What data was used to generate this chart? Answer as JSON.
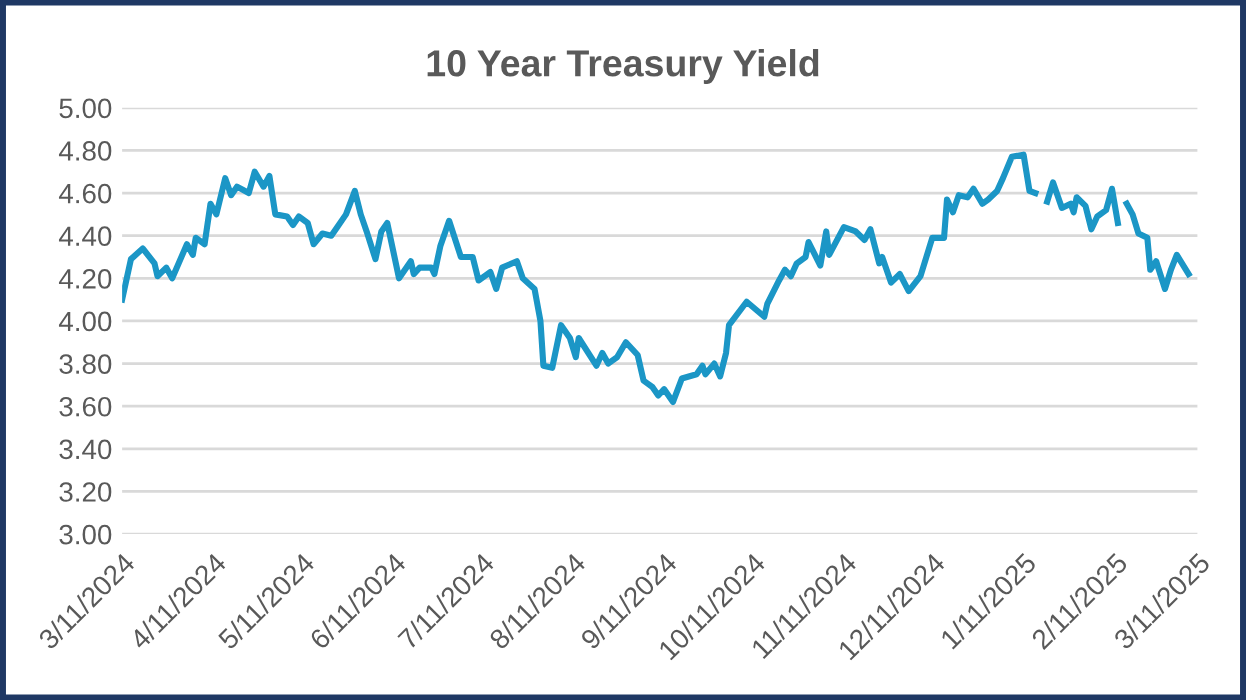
{
  "chart_data": {
    "type": "line",
    "title": "10 Year Treasury Yield",
    "x": [
      "2024-03-11",
      "2024-03-14",
      "2024-03-18",
      "2024-03-22",
      "2024-03-23",
      "2024-03-26",
      "2024-03-28",
      "2024-04-02",
      "2024-04-04",
      "2024-04-05",
      "2024-04-08",
      "2024-04-10",
      "2024-04-12",
      "2024-04-15",
      "2024-04-17",
      "2024-04-19",
      "2024-04-23",
      "2024-04-25",
      "2024-04-28",
      "2024-04-30",
      "2024-05-02",
      "2024-05-06",
      "2024-05-08",
      "2024-05-10",
      "2024-05-13",
      "2024-05-15",
      "2024-05-18",
      "2024-05-21",
      "2024-05-23",
      "2024-05-26",
      "2024-05-29",
      "2024-05-31",
      "2024-06-02",
      "2024-06-05",
      "2024-06-07",
      "2024-06-09",
      "2024-06-13",
      "2024-06-17",
      "2024-06-18",
      "2024-06-20",
      "2024-06-24",
      "2024-06-25",
      "2024-06-27",
      "2024-06-30",
      "2024-07-04",
      "2024-07-08",
      "2024-07-10",
      "2024-07-14",
      "2024-07-16",
      "2024-07-18",
      "2024-07-23",
      "2024-07-25",
      "2024-07-29",
      "2024-07-31",
      "2024-08-01",
      "2024-08-04",
      "2024-08-07",
      "2024-08-10",
      "2024-08-12",
      "2024-08-13",
      "2024-08-19",
      "2024-08-21",
      "2024-08-23",
      "2024-08-26",
      "2024-08-29",
      "2024-09-02",
      "2024-09-04",
      "2024-09-07",
      "2024-09-09",
      "2024-09-11",
      "2024-09-14",
      "2024-09-17",
      "2024-09-22",
      "2024-09-24",
      "2024-09-25",
      "2024-09-28",
      "2024-09-30",
      "2024-10-02",
      "2024-10-03",
      "2024-10-09",
      "2024-10-15",
      "2024-10-16",
      "2024-10-20",
      "2024-10-22",
      "2024-10-24",
      "2024-10-26",
      "2024-10-29",
      "2024-10-30",
      "2024-11-03",
      "2024-11-05",
      "2024-11-06",
      "2024-11-11",
      "2024-11-15",
      "2024-11-18",
      "2024-11-20",
      "2024-11-23",
      "2024-11-24",
      "2024-11-27",
      "2024-11-30",
      "2024-12-03",
      "2024-12-07",
      "2024-12-11",
      "2024-12-15",
      "2024-12-16",
      "2024-12-18",
      "2024-12-20",
      "2024-12-23",
      "2024-12-25",
      "2024-12-28",
      "2024-12-30",
      "2025-01-02",
      "2025-01-04",
      "2025-01-07",
      "2025-01-11",
      "2025-01-13",
      "2025-01-15",
      "2025-01-17",
      "2025-01-19",
      "2025-01-21",
      "2025-01-24",
      "2025-01-27",
      "2025-01-28",
      "2025-01-29",
      "2025-02-01",
      "2025-02-03",
      "2025-02-05",
      "2025-02-08",
      "2025-02-10",
      "2025-02-12",
      "2025-02-13",
      "2025-02-15",
      "2025-02-17",
      "2025-02-19",
      "2025-02-22",
      "2025-02-23",
      "2025-02-25",
      "2025-02-28",
      "2025-03-02",
      "2025-03-04",
      "2025-03-08"
    ],
    "series": [
      {
        "color": "#1b96c6",
        "values": [
          4.1,
          4.29,
          4.34,
          4.27,
          4.21,
          4.25,
          4.2,
          4.36,
          4.31,
          4.39,
          4.36,
          4.55,
          4.5,
          4.67,
          4.59,
          4.63,
          4.6,
          4.7,
          4.63,
          4.68,
          4.5,
          4.49,
          4.45,
          4.49,
          4.46,
          4.36,
          4.41,
          4.4,
          4.44,
          4.5,
          4.61,
          4.5,
          4.42,
          4.29,
          4.42,
          4.46,
          4.2,
          4.28,
          4.22,
          4.25,
          4.25,
          4.22,
          4.35,
          4.47,
          4.3,
          4.3,
          4.19,
          4.23,
          4.15,
          4.25,
          4.28,
          4.2,
          4.15,
          4.0,
          3.79,
          3.78,
          3.98,
          3.92,
          3.83,
          3.92,
          3.79,
          3.85,
          3.8,
          3.83,
          3.9,
          3.84,
          3.72,
          3.69,
          3.65,
          3.68,
          3.62,
          3.73,
          3.75,
          3.79,
          3.75,
          3.8,
          3.74,
          3.85,
          3.98,
          4.09,
          4.02,
          4.08,
          4.19,
          4.24,
          4.21,
          4.27,
          4.3,
          4.37,
          4.26,
          4.42,
          4.31,
          4.44,
          4.42,
          4.38,
          4.43,
          4.27,
          4.3,
          4.18,
          4.22,
          4.14,
          4.21,
          4.39,
          4.39,
          4.57,
          4.51,
          4.59,
          4.58,
          4.62,
          4.55,
          4.57,
          4.61,
          4.67,
          4.77,
          4.78,
          4.61,
          4.6,
          null,
          4.56,
          4.65,
          4.53,
          4.55,
          4.51,
          4.58,
          4.54,
          4.43,
          4.49,
          4.52,
          4.62,
          4.46,
          null,
          4.55,
          4.5,
          4.41,
          4.39,
          4.24,
          4.28,
          4.15,
          4.24,
          4.31,
          4.22
        ]
      }
    ],
    "xlim": [
      "2024-03-11",
      "2025-03-11"
    ],
    "xticks": [
      {
        "value": "2024-03-11",
        "label": "3/11/2024"
      },
      {
        "value": "2024-04-11",
        "label": "4/11/2024"
      },
      {
        "value": "2024-05-11",
        "label": "5/11/2024"
      },
      {
        "value": "2024-06-11",
        "label": "6/11/2024"
      },
      {
        "value": "2024-07-11",
        "label": "7/11/2024"
      },
      {
        "value": "2024-08-11",
        "label": "8/11/2024"
      },
      {
        "value": "2024-09-11",
        "label": "9/11/2024"
      },
      {
        "value": "2024-10-11",
        "label": "10/11/2024"
      },
      {
        "value": "2024-11-11",
        "label": "11/11/2024"
      },
      {
        "value": "2024-12-11",
        "label": "12/11/2024"
      },
      {
        "value": "2025-01-11",
        "label": "1/11/2025"
      },
      {
        "value": "2025-02-11",
        "label": "2/11/2025"
      },
      {
        "value": "2025-03-11",
        "label": "3/11/2025"
      }
    ],
    "ylim": [
      3.0,
      5.0
    ],
    "yticks": [
      {
        "value": 3.0,
        "label": "3.00"
      },
      {
        "value": 3.2,
        "label": "3.20"
      },
      {
        "value": 3.4,
        "label": "3.40"
      },
      {
        "value": 3.6,
        "label": "3.60"
      },
      {
        "value": 3.8,
        "label": "3.80"
      },
      {
        "value": 4.0,
        "label": "4.00"
      },
      {
        "value": 4.2,
        "label": "4.20"
      },
      {
        "value": 4.4,
        "label": "4.40"
      },
      {
        "value": 4.6,
        "label": "4.60"
      },
      {
        "value": 4.8,
        "label": "4.80"
      },
      {
        "value": 5.0,
        "label": "5.00"
      }
    ],
    "grid": "y",
    "legend": false,
    "marker": "none",
    "line_style": "solid"
  }
}
